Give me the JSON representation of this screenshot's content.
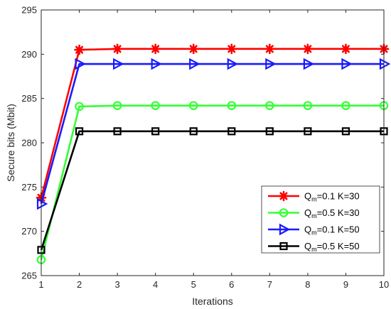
{
  "chart_data": {
    "type": "line",
    "title": "",
    "xlabel": "Iterations",
    "ylabel": "Secure bits (Mbit)",
    "x": [
      1,
      2,
      3,
      4,
      5,
      6,
      7,
      8,
      9,
      10
    ],
    "xlim": [
      1,
      10
    ],
    "ylim": [
      265,
      295
    ],
    "xticks": [
      1,
      2,
      3,
      4,
      5,
      6,
      7,
      8,
      9,
      10
    ],
    "yticks": [
      265,
      270,
      275,
      280,
      285,
      290,
      295
    ],
    "grid": false,
    "legend_position": "bottom-right",
    "series": [
      {
        "name": "Q_m=0.1 K=30",
        "legend_main": "Q",
        "legend_sub": "m",
        "legend_rest": "=0.1 K=30",
        "color": "#ff0000",
        "marker": "asterisk",
        "values": [
          273.8,
          290.5,
          290.6,
          290.6,
          290.6,
          290.6,
          290.6,
          290.6,
          290.6,
          290.6
        ]
      },
      {
        "name": "Q_m=0.5 K=30",
        "legend_main": "Q",
        "legend_sub": "m",
        "legend_rest": "=0.5 K=30",
        "color": "#33ff33",
        "marker": "circle",
        "values": [
          266.8,
          284.1,
          284.2,
          284.2,
          284.2,
          284.2,
          284.2,
          284.2,
          284.2,
          284.2
        ]
      },
      {
        "name": "Q_m=0.1 K=50",
        "legend_main": "Q",
        "legend_sub": "m",
        "legend_rest": "=0.1 K=50",
        "color": "#1a1aff",
        "marker": "triangle-right",
        "values": [
          273.1,
          288.9,
          288.9,
          288.9,
          288.9,
          288.9,
          288.9,
          288.9,
          288.9,
          288.9
        ]
      },
      {
        "name": "Q_m=0.5 K=50",
        "legend_main": "Q",
        "legend_sub": "m",
        "legend_rest": "=0.5 K=50",
        "color": "#000000",
        "marker": "square",
        "values": [
          267.9,
          281.3,
          281.3,
          281.3,
          281.3,
          281.3,
          281.3,
          281.3,
          281.3,
          281.3
        ]
      }
    ]
  }
}
